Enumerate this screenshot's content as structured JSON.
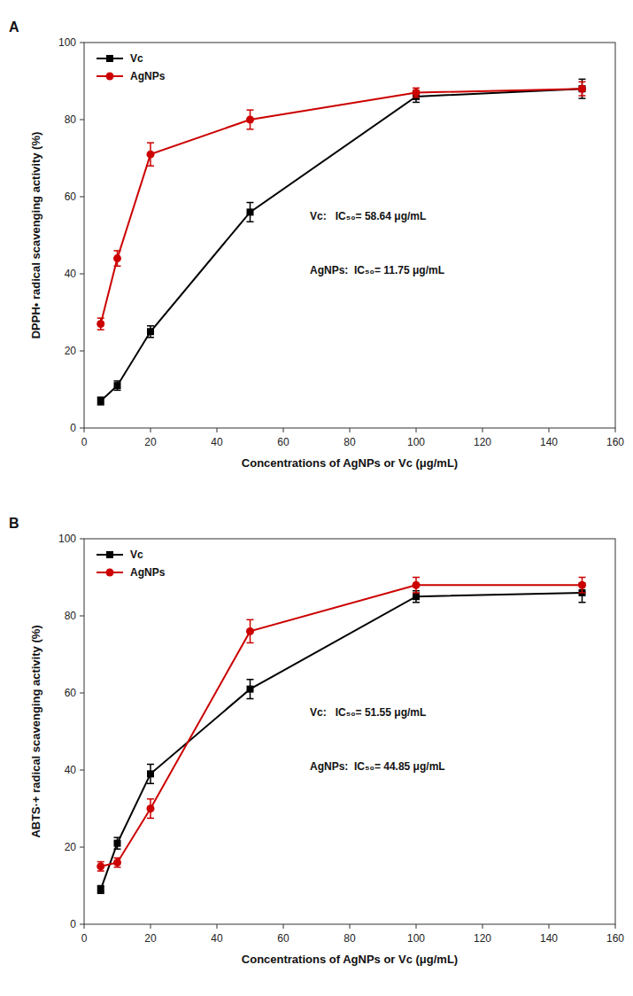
{
  "chart_data": [
    {
      "type": "line",
      "title": "A",
      "x": [
        5,
        10,
        20,
        50,
        100,
        150
      ],
      "x_label": "Concentrations of AgNPs or Vc (μg/mL)",
      "y_label": "DPPH• radical scavenging activity (%)",
      "series": [
        {
          "name": "Vc",
          "color": "#000000",
          "marker": "square",
          "line_style": "solid",
          "values": [
            7,
            11,
            25,
            56,
            86,
            88
          ],
          "errors": [
            1.0,
            1.2,
            1.5,
            2.5,
            1.5,
            2.5
          ]
        },
        {
          "name": "AgNPs",
          "color": "#cc0000",
          "marker": "circle",
          "line_style": "solid",
          "values": [
            27,
            44,
            71,
            80,
            87,
            88
          ],
          "errors": [
            1.5,
            2.0,
            3.0,
            2.5,
            1.2,
            1.8
          ]
        }
      ],
      "annotations": [
        "Vc:   IC₅₀= 58.64 μg/mL",
        "AgNPs:  IC₅₀= 11.75 μg/mL"
      ],
      "xlim": [
        0,
        160
      ],
      "ylim": [
        0,
        100
      ],
      "xticks": [
        0,
        20,
        40,
        60,
        80,
        100,
        120,
        140,
        160
      ],
      "yticks": [
        0,
        20,
        40,
        60,
        80,
        100
      ],
      "grid": false,
      "legend": "upper left"
    },
    {
      "type": "line",
      "title": "B",
      "x": [
        5,
        10,
        20,
        50,
        100,
        150
      ],
      "x_label": "Concentrations of AgNPs or Vc (μg/mL)",
      "y_label": "ABTS·+ radical scavenging activity (%)",
      "series": [
        {
          "name": "Vc",
          "color": "#000000",
          "marker": "square",
          "line_style": "solid",
          "values": [
            9,
            21,
            39,
            61,
            85,
            86
          ],
          "errors": [
            1.0,
            1.5,
            2.5,
            2.5,
            1.5,
            2.5
          ]
        },
        {
          "name": "AgNPs",
          "color": "#cc0000",
          "marker": "circle",
          "line_style": "solid",
          "values": [
            15,
            16,
            30,
            76,
            88,
            88
          ],
          "errors": [
            1.2,
            1.2,
            2.5,
            3.0,
            2.0,
            2.0
          ]
        }
      ],
      "annotations": [
        "Vc:   IC₅₀= 51.55 μg/mL",
        "AgNPs:  IC₅₀= 44.85 μg/mL"
      ],
      "xlim": [
        0,
        160
      ],
      "ylim": [
        0,
        100
      ],
      "xticks": [
        0,
        20,
        40,
        60,
        80,
        100,
        120,
        140,
        160
      ],
      "yticks": [
        0,
        20,
        40,
        60,
        80,
        100
      ],
      "grid": false,
      "legend": "upper left"
    }
  ]
}
